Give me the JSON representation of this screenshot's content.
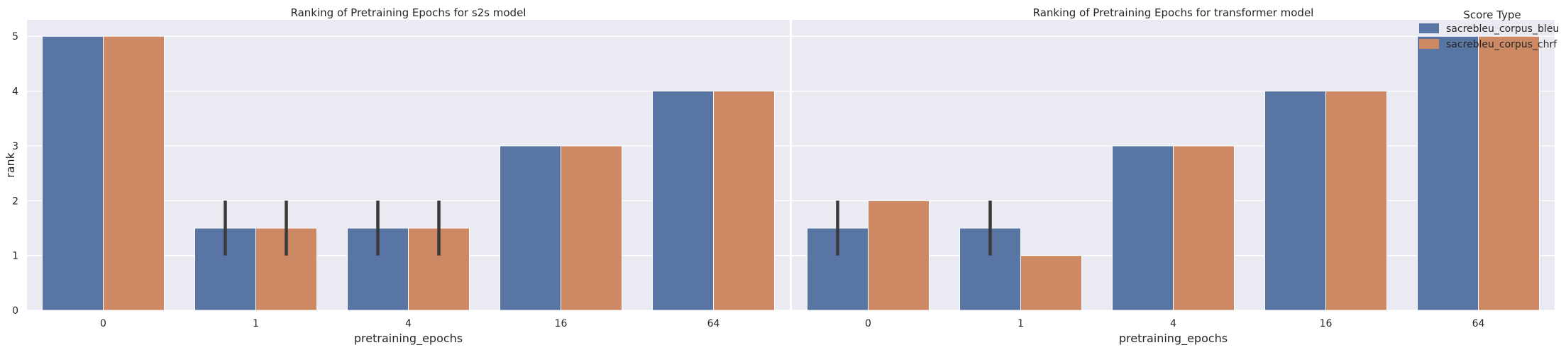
{
  "figure": {
    "legend": {
      "title": "Score Type",
      "placement": "top-right",
      "entries": [
        "sacrebleu_corpus_bleu",
        "sacrebleu_corpus_chrf"
      ]
    },
    "colors": {
      "sacrebleu_corpus_bleu": "#5875a4",
      "sacrebleu_corpus_chrf": "#cc8963",
      "plot_background": "#eaeaf2",
      "grid": "#ffffff",
      "error_bar": "#3a3a3a"
    }
  },
  "chart_data": [
    {
      "type": "bar",
      "title": "Ranking of Pretraining Epochs for s2s model",
      "xlabel": "pretraining_epochs",
      "ylabel": "rank",
      "categories": [
        "0",
        "1",
        "4",
        "16",
        "64"
      ],
      "ylim": [
        0,
        5.3
      ],
      "yticks": [
        0,
        1,
        2,
        3,
        4,
        5
      ],
      "grid": true,
      "series": [
        {
          "name": "sacrebleu_corpus_bleu",
          "values": [
            5,
            1.5,
            1.5,
            3,
            4
          ],
          "error_low": [
            null,
            1,
            1,
            null,
            null
          ],
          "error_high": [
            null,
            2,
            2,
            null,
            null
          ]
        },
        {
          "name": "sacrebleu_corpus_chrf",
          "values": [
            5,
            1.5,
            1.5,
            3,
            4
          ],
          "error_low": [
            null,
            1,
            1,
            null,
            null
          ],
          "error_high": [
            null,
            2,
            2,
            null,
            null
          ]
        }
      ]
    },
    {
      "type": "bar",
      "title": "Ranking of Pretraining Epochs for transformer model",
      "xlabel": "pretraining_epochs",
      "ylabel": "",
      "categories": [
        "0",
        "1",
        "4",
        "16",
        "64"
      ],
      "ylim": [
        0,
        5.3
      ],
      "yticks": [
        0,
        1,
        2,
        3,
        4,
        5
      ],
      "grid": true,
      "series": [
        {
          "name": "sacrebleu_corpus_bleu",
          "values": [
            1.5,
            1.5,
            3,
            4,
            5
          ],
          "error_low": [
            1,
            1,
            null,
            null,
            null
          ],
          "error_high": [
            2,
            2,
            null,
            null,
            null
          ]
        },
        {
          "name": "sacrebleu_corpus_chrf",
          "values": [
            2,
            1,
            3,
            4,
            5
          ],
          "error_low": [
            null,
            null,
            null,
            null,
            null
          ],
          "error_high": [
            null,
            null,
            null,
            null,
            null
          ]
        }
      ]
    }
  ]
}
